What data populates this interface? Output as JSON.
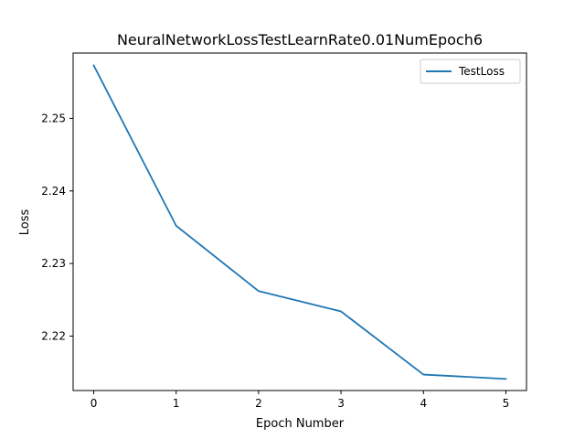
{
  "chart_data": {
    "type": "line",
    "title": "NeuralNetworkLossTestLearnRate0.01NumEpoch6",
    "xlabel": "Epoch Number",
    "ylabel": "Loss",
    "x": [
      0,
      1,
      2,
      3,
      4,
      5
    ],
    "series": [
      {
        "name": "TestLoss",
        "color": "#1f77b4",
        "values": [
          2.2573,
          2.2352,
          2.2262,
          2.2234,
          2.2147,
          2.2141
        ]
      }
    ],
    "xlim": [
      -0.25,
      5.25
    ],
    "ylim": [
      2.2125,
      2.259
    ],
    "xticks": [
      0,
      1,
      2,
      3,
      4,
      5
    ],
    "yticks": [
      2.22,
      2.23,
      2.24,
      2.25
    ],
    "ytick_labels": [
      "2.22",
      "2.23",
      "2.24",
      "2.25"
    ],
    "grid": false,
    "legend_position": "top-right"
  }
}
